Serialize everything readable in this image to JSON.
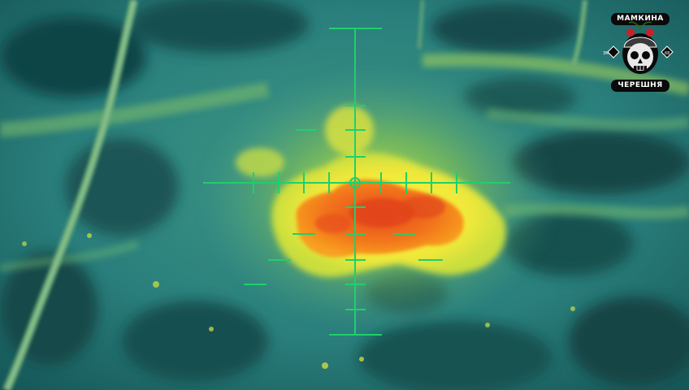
{
  "logo": {
    "top_text": "МАМКИНА",
    "bottom_text": "ЧЕРЕШНЯ",
    "side_left": "ЗМ",
    "side_right": "68",
    "colors": {
      "badge_bg": "#0a0a0a",
      "text": "#ffffff",
      "cherry": "#cc1f2b"
    }
  },
  "scene": {
    "palette": {
      "cold_dark": "#0e3b3d",
      "cold": "#2a7f7c",
      "mid": "#52a08a",
      "warm_green": "#9bcf4a",
      "warm_yellow": "#f5ec3a",
      "hot_orange": "#f47a1c",
      "hot_red": "#e5471a",
      "reticle": "#1fd06b"
    },
    "reticle_icon": "crosshair-icon"
  }
}
